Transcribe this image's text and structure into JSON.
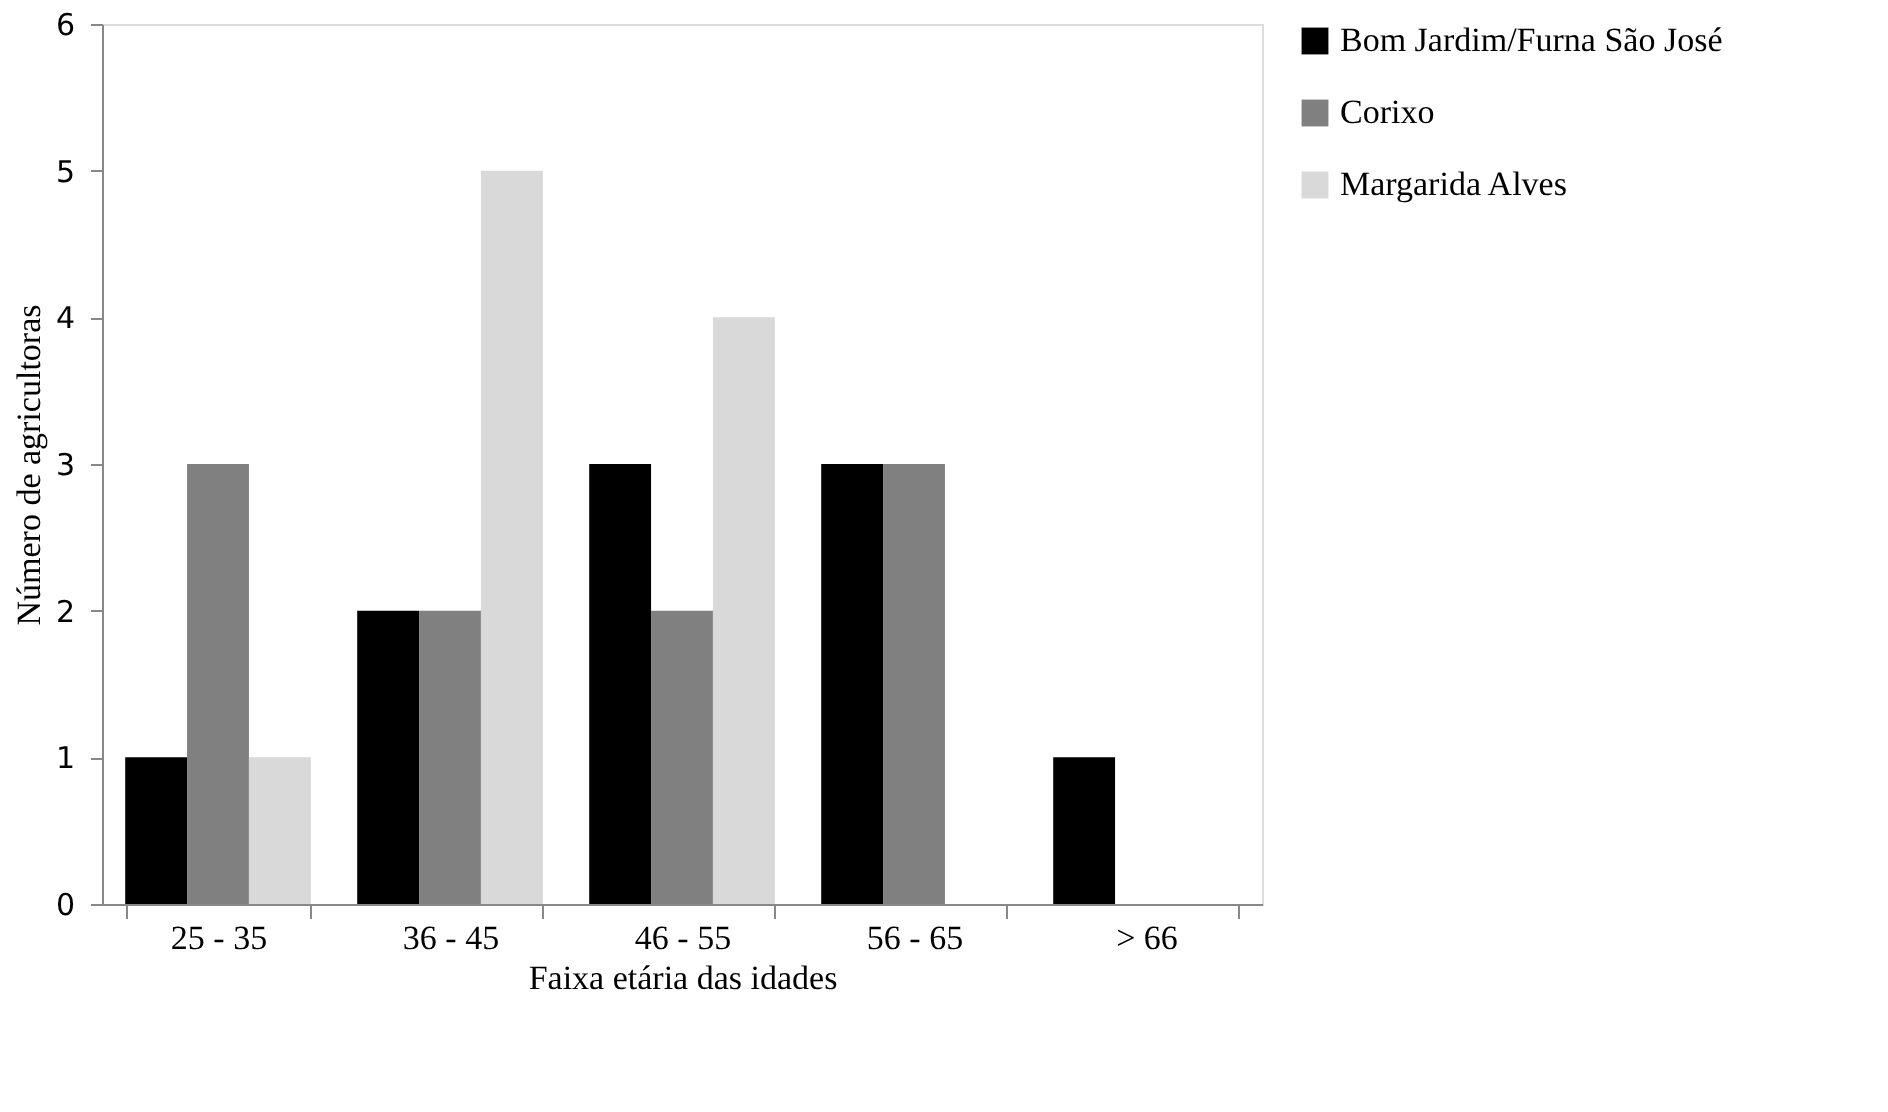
{
  "chart_data": {
    "type": "bar",
    "xlabel": "Faixa etária das idades",
    "ylabel": "Número de agricultoras",
    "categories": [
      "25 - 35",
      "36 - 45",
      "46 - 55",
      "56 - 65",
      "> 66"
    ],
    "series": [
      {
        "name": "Bom Jardim/Furna São José",
        "color": "#000000",
        "values": [
          1,
          2,
          3,
          3,
          1
        ]
      },
      {
        "name": "Corixo",
        "color": "#808080",
        "values": [
          3,
          2,
          2,
          3,
          0
        ]
      },
      {
        "name": "Margarida Alves",
        "color": "#d9d9d9",
        "values": [
          1,
          5,
          4,
          0,
          0
        ]
      }
    ],
    "ylim": [
      0,
      6
    ],
    "yticks": [
      0,
      1,
      2,
      3,
      4,
      5,
      6
    ],
    "grid": false,
    "legend": "right"
  }
}
